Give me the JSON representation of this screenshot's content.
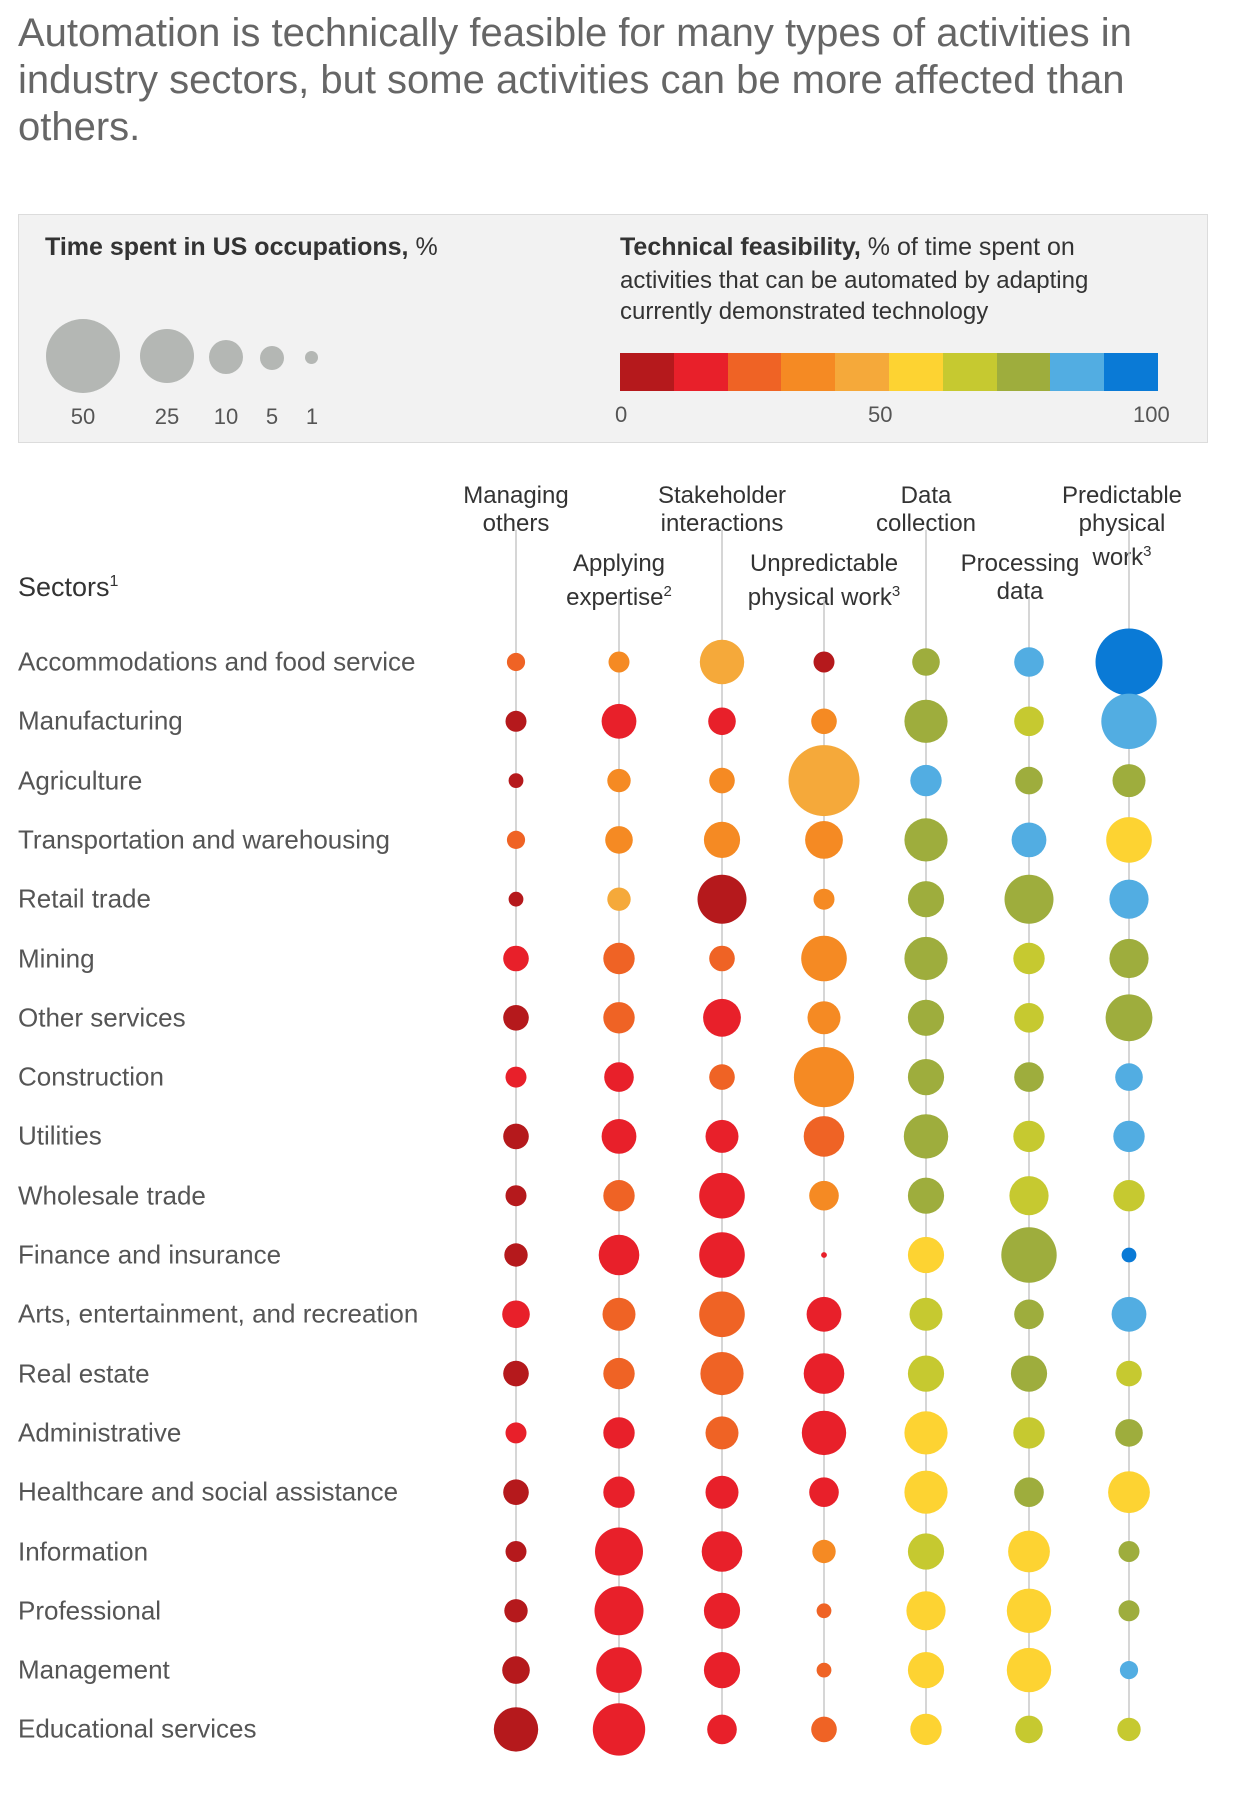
{
  "title": "Automation is technically feasible for many types of activities in industry sectors, but some activities can be more affected than others.",
  "legend": {
    "size_title": "Time spent in US occupations,",
    "size_unit": "%",
    "size_labels": [
      "50",
      "25",
      "10",
      "5",
      "1"
    ],
    "color_title": "Technical feasibility,",
    "color_sub_line1": "% of time spent on",
    "color_sub_line2": "activities that can be automated by adapting",
    "color_sub_line3": "currently demonstrated technology",
    "scale_labels": [
      "0",
      "50",
      "100"
    ],
    "scale_colors": [
      "#b5191c",
      "#e8202a",
      "#ef6325",
      "#f58a23",
      "#f5a93a",
      "#fdd332",
      "#c6c930",
      "#9ead3d",
      "#52ade2",
      "#0a7ad6"
    ]
  },
  "columns": [
    {
      "line1": "Managing",
      "line2": "others",
      "sup": ""
    },
    {
      "line1": "Applying",
      "line2": "expertise",
      "sup": "2"
    },
    {
      "line1": "Stakeholder",
      "line2": "interactions",
      "sup": ""
    },
    {
      "line1": "Unpredictable",
      "line2": "physical work",
      "sup": "3"
    },
    {
      "line1": "Data",
      "line2": "collection",
      "sup": ""
    },
    {
      "line1": "Processing",
      "line2": "data",
      "sup": ""
    },
    {
      "line1": "Predictable",
      "line2": "physical",
      "line3": "work",
      "sup": "3"
    }
  ],
  "sectors_header": "Sectors",
  "sectors_header_sup": "1",
  "chart_data": {
    "type": "bubble-matrix",
    "size_measure": "Time spent in US occupations, %",
    "color_measure": "Technical feasibility, % of time spent on activities that can be automated by adapting currently demonstrated technology",
    "columns": [
      "Managing others",
      "Applying expertise",
      "Stakeholder interactions",
      "Unpredictable physical work",
      "Data collection",
      "Processing data",
      "Predictable physical work"
    ],
    "rows": [
      {
        "sector": "Accommodations and food service",
        "time": [
          3,
          4,
          18,
          4,
          7,
          8,
          41
        ],
        "feasibility": [
          25,
          35,
          45,
          5,
          75,
          85,
          95
        ]
      },
      {
        "sector": "Manufacturing",
        "time": [
          4,
          11,
          7,
          6,
          17,
          8,
          28
        ],
        "feasibility": [
          5,
          15,
          15,
          35,
          75,
          65,
          85
        ]
      },
      {
        "sector": "Agriculture",
        "time": [
          2,
          5,
          6,
          46,
          9,
          7,
          10
        ],
        "feasibility": [
          5,
          35,
          35,
          45,
          85,
          75,
          75
        ]
      },
      {
        "sector": "Transportation and warehousing",
        "time": [
          3,
          7,
          12,
          13,
          17,
          11,
          19
        ],
        "feasibility": [
          25,
          35,
          35,
          35,
          75,
          85,
          55
        ]
      },
      {
        "sector": "Retail trade",
        "time": [
          2,
          5,
          22,
          4,
          12,
          22,
          14
        ],
        "feasibility": [
          5,
          45,
          5,
          35,
          75,
          75,
          85
        ]
      },
      {
        "sector": "Mining",
        "time": [
          6,
          9,
          6,
          19,
          17,
          9,
          14
        ],
        "feasibility": [
          15,
          25,
          25,
          35,
          75,
          65,
          75
        ]
      },
      {
        "sector": "Other services",
        "time": [
          6,
          9,
          13,
          10,
          12,
          8,
          20
        ],
        "feasibility": [
          5,
          25,
          15,
          35,
          75,
          65,
          75
        ]
      },
      {
        "sector": "Construction",
        "time": [
          4,
          8,
          6,
          33,
          12,
          8,
          7
        ],
        "feasibility": [
          15,
          15,
          25,
          35,
          75,
          75,
          85
        ]
      },
      {
        "sector": "Utilities",
        "time": [
          6,
          11,
          10,
          15,
          18,
          9,
          9
        ],
        "feasibility": [
          5,
          15,
          15,
          25,
          75,
          65,
          85
        ]
      },
      {
        "sector": "Wholesale trade",
        "time": [
          4,
          9,
          19,
          8,
          12,
          14,
          9
        ],
        "feasibility": [
          5,
          25,
          15,
          35,
          75,
          65,
          65
        ]
      },
      {
        "sector": "Finance and insurance",
        "time": [
          5,
          15,
          19,
          0.3,
          12,
          28,
          2
        ],
        "feasibility": [
          5,
          15,
          15,
          15,
          55,
          75,
          95
        ]
      },
      {
        "sector": "Arts, entertainment, and recreation",
        "time": [
          7,
          10,
          19,
          11,
          10,
          8,
          11
        ],
        "feasibility": [
          15,
          25,
          25,
          15,
          65,
          75,
          85
        ]
      },
      {
        "sector": "Real estate",
        "time": [
          6,
          9,
          17,
          15,
          12,
          12,
          6
        ],
        "feasibility": [
          5,
          25,
          25,
          15,
          65,
          75,
          65
        ]
      },
      {
        "sector": "Administrative",
        "time": [
          4,
          9,
          10,
          18,
          17,
          9,
          7
        ],
        "feasibility": [
          15,
          15,
          25,
          15,
          55,
          65,
          75
        ]
      },
      {
        "sector": "Healthcare and social assistance",
        "time": [
          6,
          9,
          10,
          8,
          17,
          8,
          16
        ],
        "feasibility": [
          5,
          15,
          15,
          15,
          55,
          75,
          55
        ]
      },
      {
        "sector": "Information",
        "time": [
          4,
          21,
          15,
          5,
          12,
          16,
          4
        ],
        "feasibility": [
          5,
          15,
          15,
          35,
          65,
          55,
          75
        ]
      },
      {
        "sector": "Professional",
        "time": [
          5,
          22,
          12,
          2,
          14,
          18,
          4
        ],
        "feasibility": [
          5,
          15,
          15,
          25,
          55,
          55,
          75
        ]
      },
      {
        "sector": "Management",
        "time": [
          7,
          19,
          12,
          2,
          12,
          18,
          3
        ],
        "feasibility": [
          5,
          15,
          15,
          25,
          55,
          55,
          85
        ]
      },
      {
        "sector": "Educational services",
        "time": [
          18,
          25,
          8,
          6,
          9,
          7,
          5
        ],
        "feasibility": [
          5,
          15,
          15,
          25,
          55,
          65,
          65
        ]
      }
    ]
  }
}
